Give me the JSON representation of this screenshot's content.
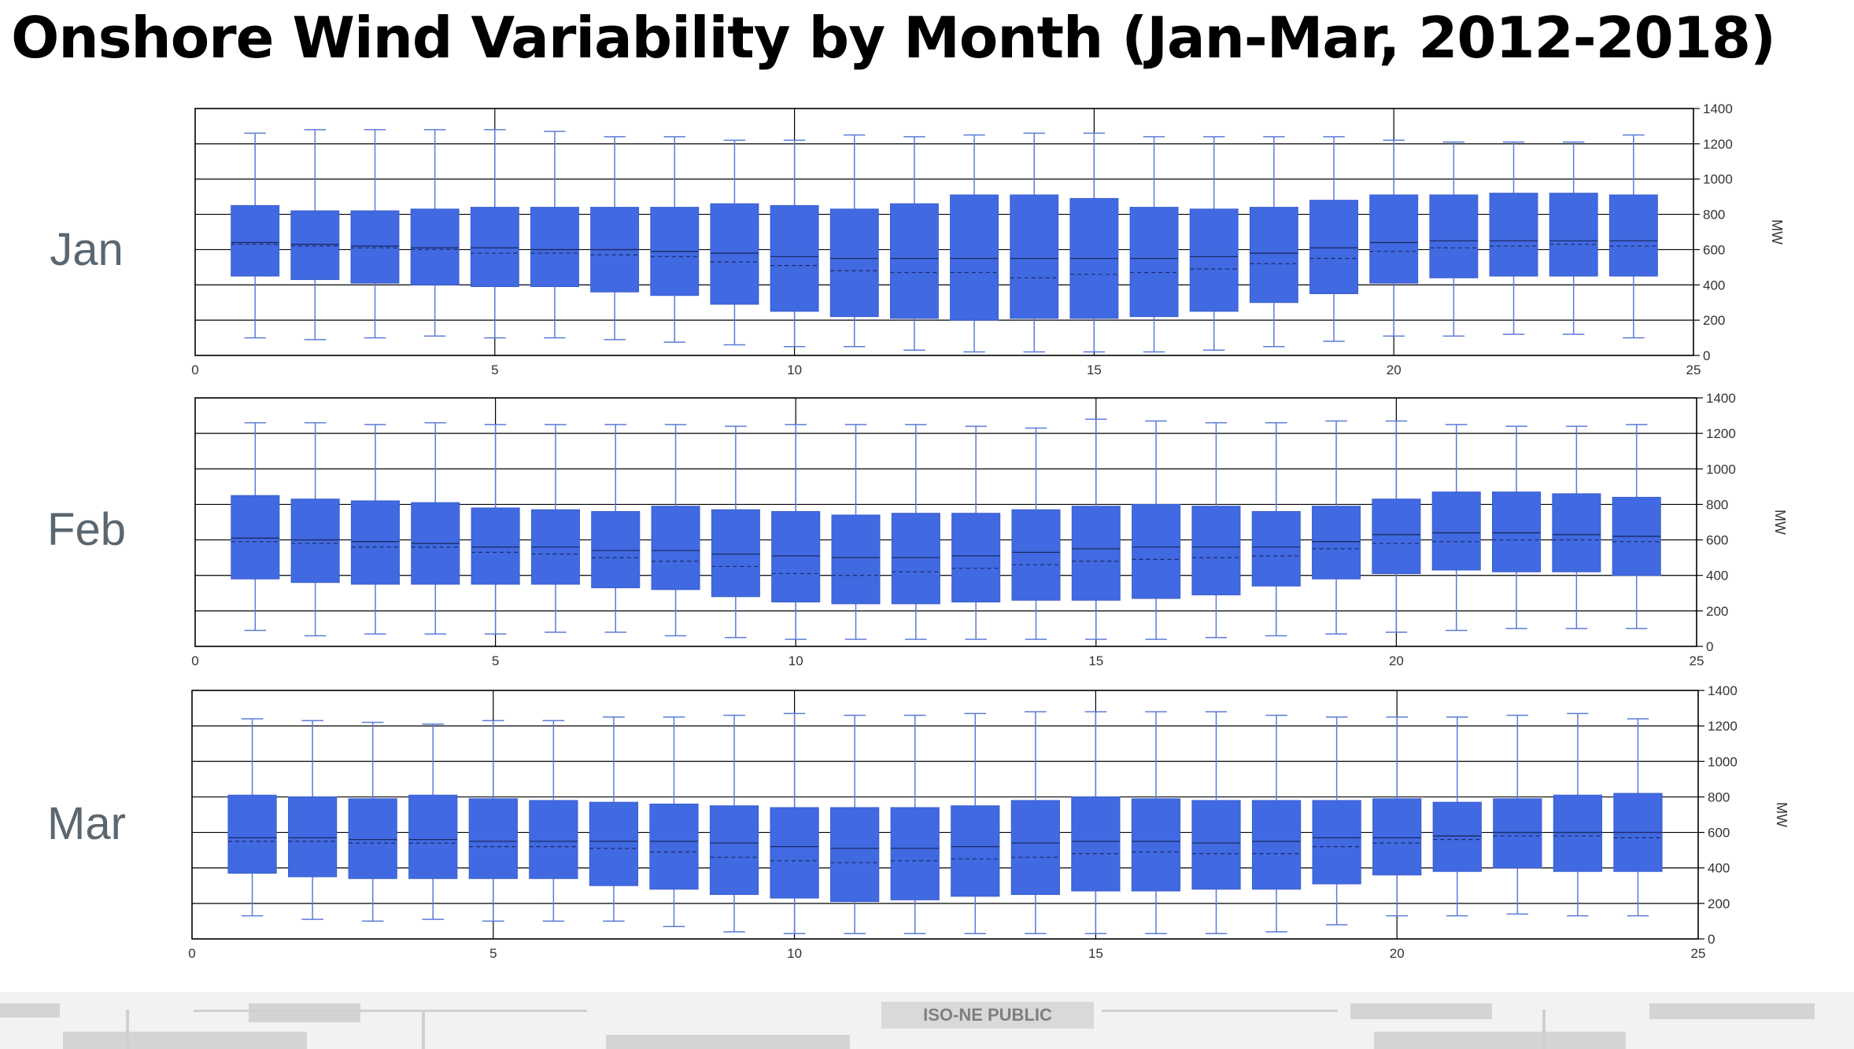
{
  "title": "Onshore Wind Variability by Month (Jan-Mar, 2012-2018)",
  "footer_label": "ISO-NE PUBLIC",
  "colors": {
    "box": "#4169E1",
    "whisker": "#5b7bd8",
    "grid": "#000000",
    "axis_text": "#333333"
  },
  "chart_data": [
    {
      "type": "box",
      "panel_label": "Jan",
      "ylabel": "MW",
      "xlim": [
        0,
        25
      ],
      "ylim": [
        0,
        1400
      ],
      "x_ticks": [
        0,
        5,
        10,
        15,
        20,
        25
      ],
      "y_ticks": [
        0,
        200,
        400,
        600,
        800,
        1000,
        1200,
        1400
      ],
      "grid": true,
      "y_axis_side": "right",
      "x": [
        1,
        2,
        3,
        4,
        5,
        6,
        7,
        8,
        9,
        10,
        11,
        12,
        13,
        14,
        15,
        16,
        17,
        18,
        19,
        20,
        21,
        22,
        23,
        24
      ],
      "whisker_low": [
        100,
        90,
        100,
        110,
        100,
        100,
        90,
        75,
        60,
        50,
        50,
        30,
        20,
        20,
        20,
        20,
        30,
        50,
        80,
        110,
        110,
        120,
        120,
        100
      ],
      "q1": [
        450,
        430,
        410,
        400,
        390,
        390,
        360,
        340,
        290,
        250,
        220,
        210,
        200,
        210,
        210,
        220,
        250,
        300,
        350,
        410,
        440,
        450,
        450,
        450
      ],
      "median": [
        640,
        630,
        620,
        610,
        610,
        600,
        600,
        590,
        580,
        560,
        550,
        550,
        550,
        550,
        550,
        550,
        560,
        580,
        610,
        640,
        650,
        650,
        650,
        650
      ],
      "mean": [
        630,
        620,
        610,
        600,
        580,
        580,
        570,
        560,
        530,
        510,
        480,
        470,
        470,
        440,
        460,
        470,
        490,
        520,
        550,
        590,
        610,
        620,
        630,
        620
      ],
      "q3": [
        850,
        820,
        820,
        830,
        840,
        840,
        840,
        840,
        860,
        850,
        830,
        860,
        910,
        910,
        890,
        840,
        830,
        840,
        880,
        910,
        910,
        920,
        920,
        910
      ],
      "whisker_high": [
        1260,
        1280,
        1280,
        1280,
        1280,
        1270,
        1240,
        1240,
        1220,
        1220,
        1250,
        1240,
        1250,
        1260,
        1260,
        1240,
        1240,
        1240,
        1240,
        1220,
        1210,
        1210,
        1210,
        1250
      ]
    },
    {
      "type": "box",
      "panel_label": "Feb",
      "ylabel": "MW",
      "xlim": [
        0,
        25
      ],
      "ylim": [
        0,
        1400
      ],
      "x_ticks": [
        0,
        5,
        10,
        15,
        20,
        25
      ],
      "y_ticks": [
        0,
        200,
        400,
        600,
        800,
        1000,
        1200,
        1400
      ],
      "grid": true,
      "y_axis_side": "right",
      "x": [
        1,
        2,
        3,
        4,
        5,
        6,
        7,
        8,
        9,
        10,
        11,
        12,
        13,
        14,
        15,
        16,
        17,
        18,
        19,
        20,
        21,
        22,
        23,
        24
      ],
      "whisker_low": [
        90,
        60,
        70,
        70,
        70,
        80,
        80,
        60,
        50,
        40,
        40,
        40,
        40,
        40,
        40,
        40,
        50,
        60,
        70,
        80,
        90,
        100,
        100,
        100
      ],
      "q1": [
        380,
        360,
        350,
        350,
        350,
        350,
        330,
        320,
        280,
        250,
        240,
        240,
        250,
        260,
        260,
        270,
        290,
        340,
        380,
        410,
        430,
        420,
        420,
        400
      ],
      "median": [
        610,
        600,
        590,
        580,
        560,
        560,
        540,
        540,
        520,
        510,
        500,
        500,
        510,
        530,
        550,
        560,
        560,
        560,
        590,
        630,
        640,
        640,
        630,
        620
      ],
      "mean": [
        590,
        580,
        560,
        560,
        530,
        520,
        500,
        480,
        450,
        410,
        400,
        420,
        440,
        460,
        480,
        490,
        500,
        510,
        550,
        580,
        590,
        600,
        600,
        590
      ],
      "q3": [
        850,
        830,
        820,
        810,
        780,
        770,
        760,
        790,
        770,
        760,
        740,
        750,
        750,
        770,
        790,
        800,
        790,
        760,
        790,
        830,
        870,
        870,
        860,
        840
      ],
      "whisker_high": [
        1260,
        1260,
        1250,
        1260,
        1250,
        1250,
        1250,
        1250,
        1240,
        1250,
        1250,
        1250,
        1240,
        1230,
        1280,
        1270,
        1260,
        1260,
        1270,
        1270,
        1250,
        1240,
        1240,
        1250
      ]
    },
    {
      "type": "box",
      "panel_label": "Mar",
      "ylabel": "MW",
      "xlim": [
        0,
        25
      ],
      "ylim": [
        0,
        1400
      ],
      "x_ticks": [
        0,
        5,
        10,
        15,
        20,
        25
      ],
      "y_ticks": [
        0,
        200,
        400,
        600,
        800,
        1000,
        1200,
        1400
      ],
      "grid": true,
      "y_axis_side": "right",
      "x": [
        1,
        2,
        3,
        4,
        5,
        6,
        7,
        8,
        9,
        10,
        11,
        12,
        13,
        14,
        15,
        16,
        17,
        18,
        19,
        20,
        21,
        22,
        23,
        24
      ],
      "whisker_low": [
        130,
        110,
        100,
        110,
        100,
        100,
        100,
        70,
        40,
        30,
        30,
        30,
        30,
        30,
        30,
        30,
        30,
        40,
        80,
        130,
        130,
        140,
        130,
        130
      ],
      "q1": [
        370,
        350,
        340,
        340,
        340,
        340,
        300,
        280,
        250,
        230,
        210,
        220,
        240,
        250,
        270,
        270,
        280,
        280,
        310,
        360,
        380,
        400,
        380,
        380
      ],
      "median": [
        570,
        570,
        560,
        560,
        550,
        550,
        550,
        550,
        540,
        520,
        510,
        510,
        520,
        540,
        550,
        550,
        540,
        550,
        570,
        570,
        580,
        600,
        600,
        600
      ],
      "mean": [
        550,
        550,
        540,
        540,
        520,
        520,
        510,
        490,
        460,
        440,
        430,
        440,
        450,
        460,
        480,
        490,
        480,
        480,
        520,
        540,
        560,
        580,
        580,
        570
      ],
      "q3": [
        810,
        800,
        790,
        810,
        790,
        780,
        770,
        760,
        750,
        740,
        740,
        740,
        750,
        780,
        800,
        790,
        780,
        780,
        780,
        790,
        770,
        790,
        810,
        820
      ],
      "whisker_high": [
        1240,
        1230,
        1220,
        1210,
        1230,
        1230,
        1250,
        1250,
        1260,
        1270,
        1260,
        1260,
        1270,
        1280,
        1280,
        1280,
        1280,
        1260,
        1250,
        1250,
        1250,
        1260,
        1270,
        1240
      ]
    }
  ]
}
